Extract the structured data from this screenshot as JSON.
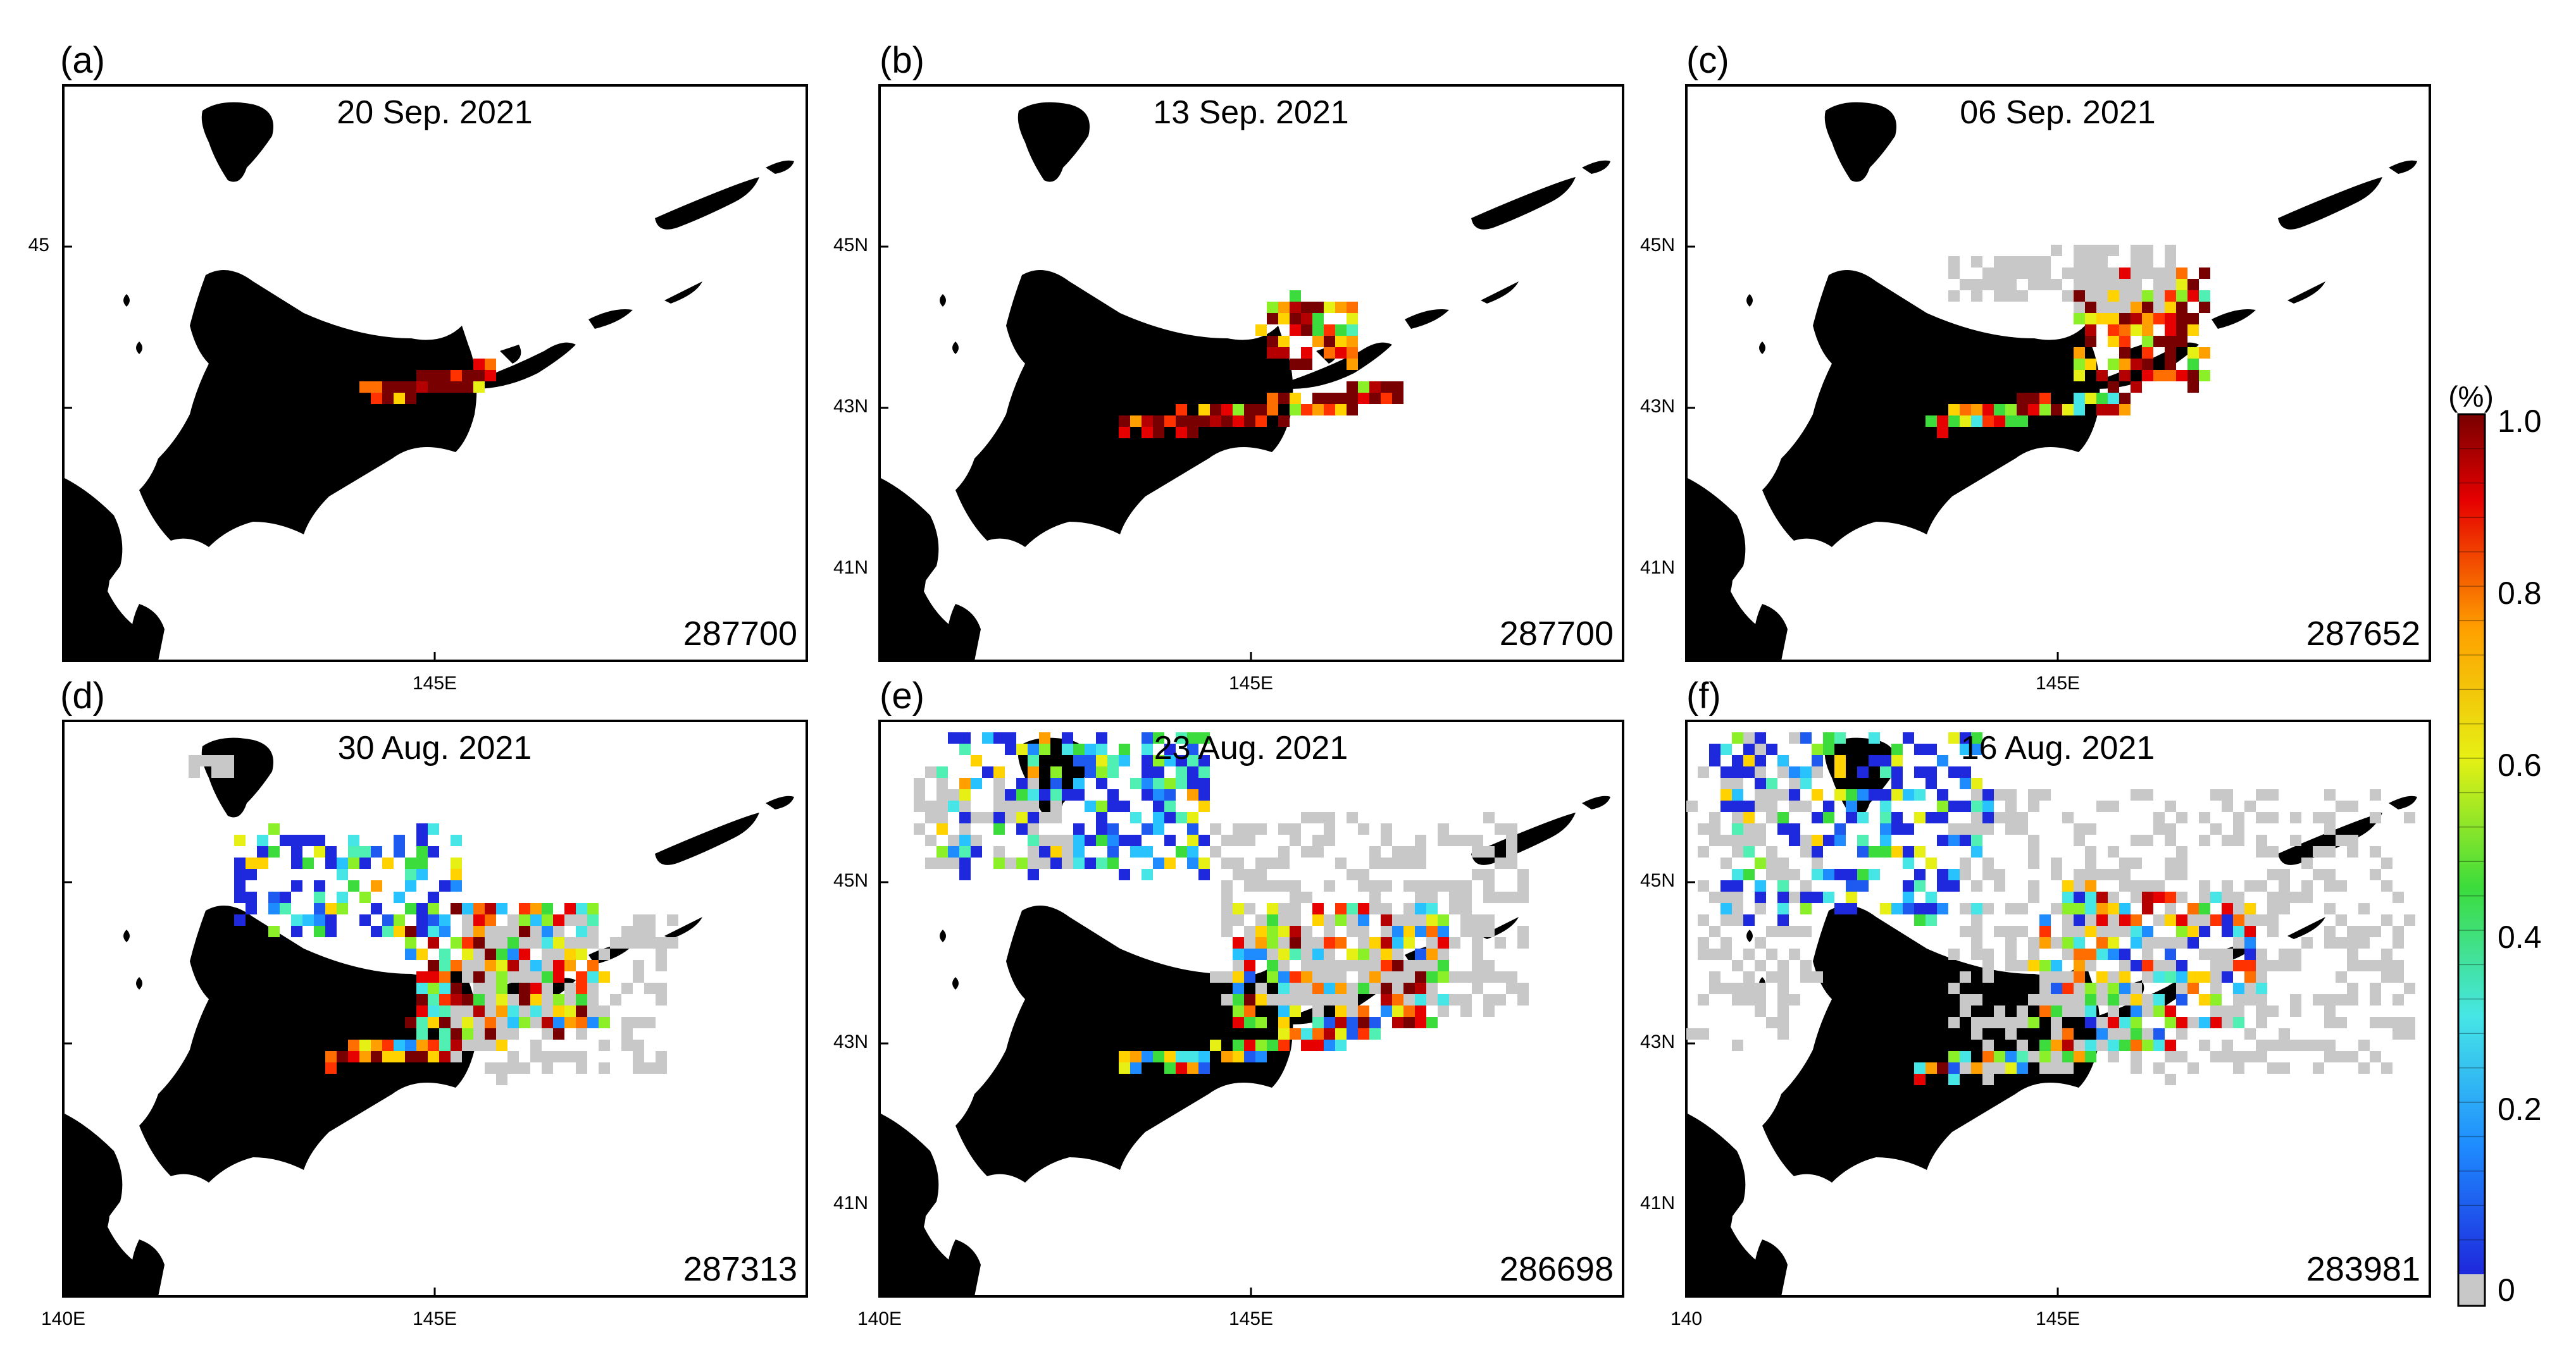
{
  "figure": {
    "panels": [
      {
        "id": "a",
        "label": "(a)",
        "date": "20 Sep. 2021",
        "count": "287700",
        "lat_ticks": [
          "45"
        ],
        "lon_ticks": []
      },
      {
        "id": "b",
        "label": "(b)",
        "date": "13 Sep. 2021",
        "count": "287700",
        "lat_ticks": [
          "45N",
          "43N",
          "41N"
        ],
        "lon_ticks": []
      },
      {
        "id": "c",
        "label": "(c)",
        "date": "06 Sep. 2021",
        "count": "287652",
        "lat_ticks": [
          "45N",
          "43N",
          "41N"
        ],
        "lon_ticks": []
      },
      {
        "id": "d",
        "label": "(d)",
        "date": "30 Aug. 2021",
        "count": "287313",
        "lat_ticks": [],
        "lon_ticks": [
          "140E",
          "145E"
        ]
      },
      {
        "id": "e",
        "label": "(e)",
        "date": "23 Aug. 2021",
        "count": "286698",
        "lat_ticks": [
          "45N",
          "43N",
          "41N"
        ],
        "lon_ticks": [
          "140E",
          "145E"
        ]
      },
      {
        "id": "f",
        "label": "(f)",
        "date": "16 Aug. 2021",
        "count": "283981",
        "lat_ticks": [
          "45N",
          "43N",
          "41N"
        ],
        "lon_ticks": [
          "140",
          "145E"
        ]
      }
    ],
    "top_row_lon_label": "145E",
    "colorbar": {
      "unit": "(%)",
      "ticks": [
        "1.0",
        "0.8",
        "0.6",
        "0.4",
        "0.2",
        "0"
      ],
      "colors": [
        "#c8c8c8",
        "#1e28dc",
        "#1e5af0",
        "#1e8cff",
        "#28c3ff",
        "#46e6e6",
        "#50f0b4",
        "#3cdc3c",
        "#8cf028",
        "#e6f014",
        "#ffd200",
        "#ffa000",
        "#ff6e00",
        "#ff3200",
        "#e60000",
        "#b40000",
        "#780000"
      ]
    },
    "map_colors": {
      "land": "#000000",
      "ocean": "#ffffff",
      "zero": "#c8c8c8"
    }
  }
}
